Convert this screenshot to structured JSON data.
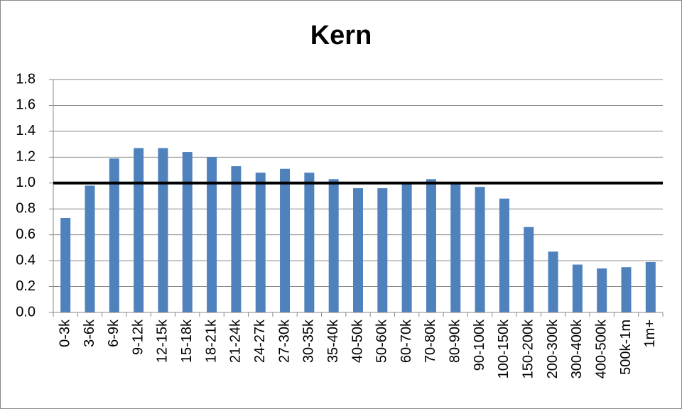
{
  "chart_data": {
    "type": "bar",
    "title": "Kern",
    "categories": [
      "0-3k",
      "3-6k",
      "6-9k",
      "9-12k",
      "12-15k",
      "15-18k",
      "18-21k",
      "21-24k",
      "24-27k",
      "27-30k",
      "30-35k",
      "35-40k",
      "40-50k",
      "50-60k",
      "60-70k",
      "70-80k",
      "80-90k",
      "90-100k",
      "100-150k",
      "150-200k",
      "200-300k",
      "300-400k",
      "400-500k",
      "500k-1m",
      "1m+"
    ],
    "values": [
      0.73,
      0.98,
      1.19,
      1.27,
      1.27,
      1.24,
      1.2,
      1.13,
      1.08,
      1.11,
      1.08,
      1.03,
      0.96,
      0.96,
      1.0,
      1.03,
      1.0,
      0.97,
      0.88,
      0.66,
      0.47,
      0.37,
      0.34,
      0.35,
      0.39
    ],
    "color": "#4f81bd",
    "ylim": [
      0,
      1.8
    ],
    "yticks": [
      {
        "value": 0,
        "label": "0.0"
      },
      0.2,
      0.4,
      0.6,
      0.8,
      {
        "value": 1,
        "label": "1.0"
      },
      1.2,
      1.4,
      1.6,
      1.8
    ],
    "grid": true,
    "reference_line": 1
  }
}
